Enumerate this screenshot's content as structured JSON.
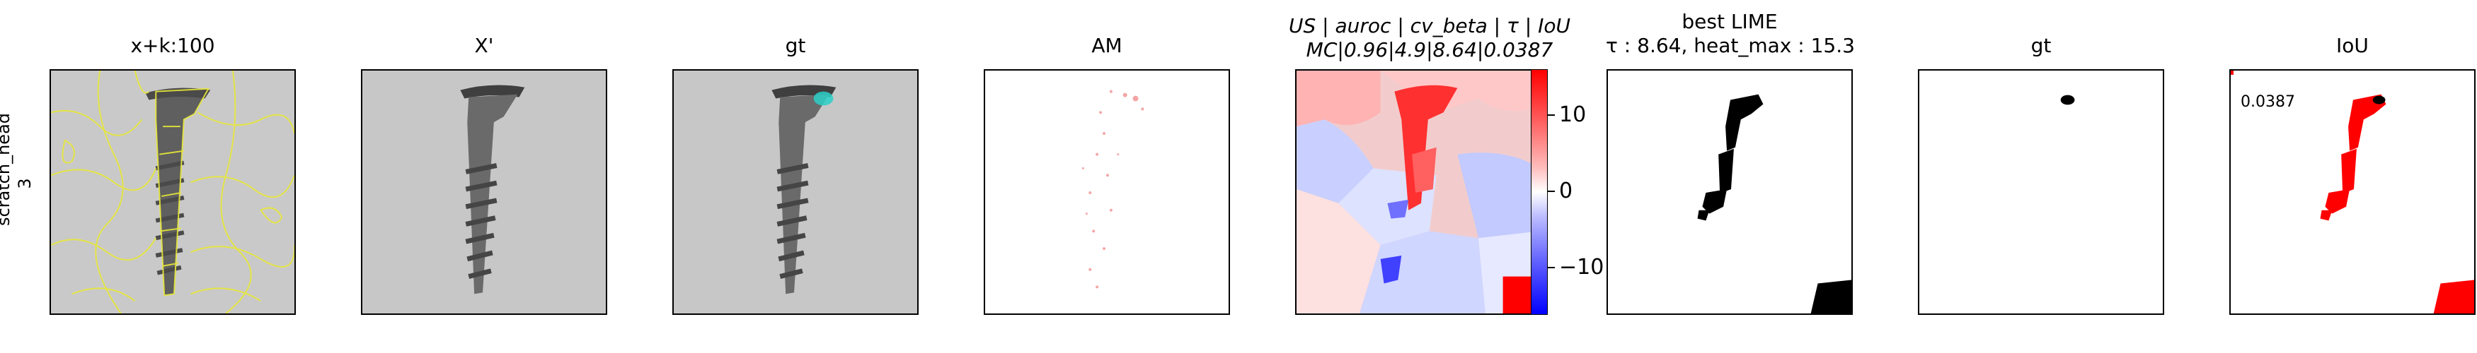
{
  "row_label": {
    "line1": "scratch_head",
    "line2": "3"
  },
  "titles": {
    "p1": "x+k:100",
    "p2": "X'",
    "p3": "gt",
    "p4": "AM",
    "p5_line1": "US | auroc | cv_beta | τ | IoU",
    "p5_line2": "MC|0.96|4.9|8.64|0.0387",
    "p6_line1": "best LIME",
    "p6_line2": "τ : 8.64, heat_max : 15.3",
    "p7": "gt",
    "p8": "IoU"
  },
  "iou_value": "0.0387",
  "colorbar": {
    "ticks": [
      "10",
      "0",
      "−10"
    ],
    "colors": {
      "positive": "#ff0000",
      "zero": "#ffffff",
      "negative": "#0000ff"
    }
  },
  "colors": {
    "segment_lines": "#e8e83a",
    "gt_marker": "#2ad0c8",
    "iou_red": "#ff0000"
  }
}
